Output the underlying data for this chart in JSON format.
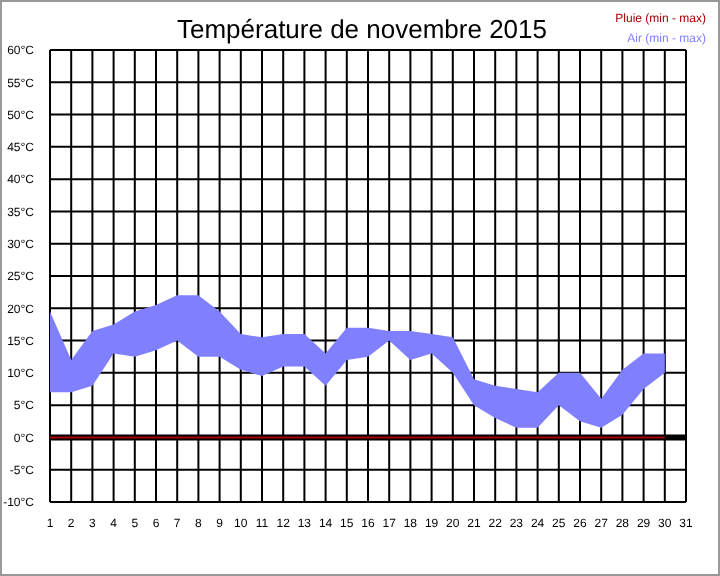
{
  "chart_data": {
    "type": "line",
    "title": "Température de novembre 2015",
    "x": [
      1,
      2,
      3,
      4,
      5,
      6,
      7,
      8,
      9,
      10,
      11,
      12,
      13,
      14,
      15,
      16,
      17,
      18,
      19,
      20,
      21,
      22,
      23,
      24,
      25,
      26,
      27,
      28,
      29,
      30
    ],
    "series": [
      {
        "name": "Pluie (min - max)",
        "color": "#aa0000",
        "values": [
          0,
          0,
          0,
          0,
          0,
          0,
          0,
          0,
          0,
          0,
          0,
          0,
          0,
          0,
          0,
          0,
          0,
          0,
          0,
          0,
          0,
          0,
          0,
          0,
          0,
          0,
          0,
          0,
          0,
          0
        ]
      },
      {
        "name": "Air (min - max)",
        "color": "#8080ff",
        "values": [
          null,
          null,
          null,
          null,
          null,
          null,
          null,
          null,
          null,
          null,
          null,
          null,
          null,
          null,
          null,
          null,
          null,
          null,
          null,
          null,
          null,
          null,
          null,
          null,
          null,
          null,
          null,
          null,
          null,
          null
        ],
        "lower": [
          7,
          7,
          8,
          13,
          12.5,
          13.5,
          15,
          12.5,
          12.5,
          10.5,
          9.5,
          11,
          11,
          8,
          12,
          12.5,
          15,
          12,
          13,
          10,
          5,
          3,
          1.5,
          1.5,
          5,
          2.5,
          1.5,
          3.5,
          7.5,
          10
        ],
        "upper": [
          19.5,
          12,
          16.5,
          17.5,
          19.5,
          20.5,
          22,
          22,
          19.5,
          16,
          15.5,
          16,
          16,
          13,
          17,
          17,
          16.5,
          16.5,
          16,
          15.5,
          9,
          8,
          7.5,
          7,
          10,
          10,
          6,
          10.5,
          13,
          13
        ]
      }
    ],
    "xlim": [
      1,
      31
    ],
    "xticks": [
      1,
      2,
      3,
      4,
      5,
      6,
      7,
      8,
      9,
      10,
      11,
      12,
      13,
      14,
      15,
      16,
      17,
      18,
      19,
      20,
      21,
      22,
      23,
      24,
      25,
      26,
      27,
      28,
      29,
      30,
      31
    ],
    "ylim": [
      -10,
      60
    ],
    "yticks": [
      {
        "value": -10,
        "label": "-10°C"
      },
      {
        "value": -5,
        "label": "-5°C"
      },
      {
        "value": 0,
        "label": "0°C"
      },
      {
        "value": 5,
        "label": "5°C"
      },
      {
        "value": 10,
        "label": "10°C"
      },
      {
        "value": 15,
        "label": "15°C"
      },
      {
        "value": 20,
        "label": "20°C"
      },
      {
        "value": 25,
        "label": "25°C"
      },
      {
        "value": 30,
        "label": "30°C"
      },
      {
        "value": 35,
        "label": "35°C"
      },
      {
        "value": 40,
        "label": "40°C"
      },
      {
        "value": 45,
        "label": "45°C"
      },
      {
        "value": 50,
        "label": "50°C"
      },
      {
        "value": 55,
        "label": "55°C"
      },
      {
        "value": 60,
        "label": "60°C"
      }
    ],
    "ref_lines": [
      {
        "axis": "y",
        "value": 0,
        "color": "#000000"
      }
    ],
    "grid": true
  }
}
